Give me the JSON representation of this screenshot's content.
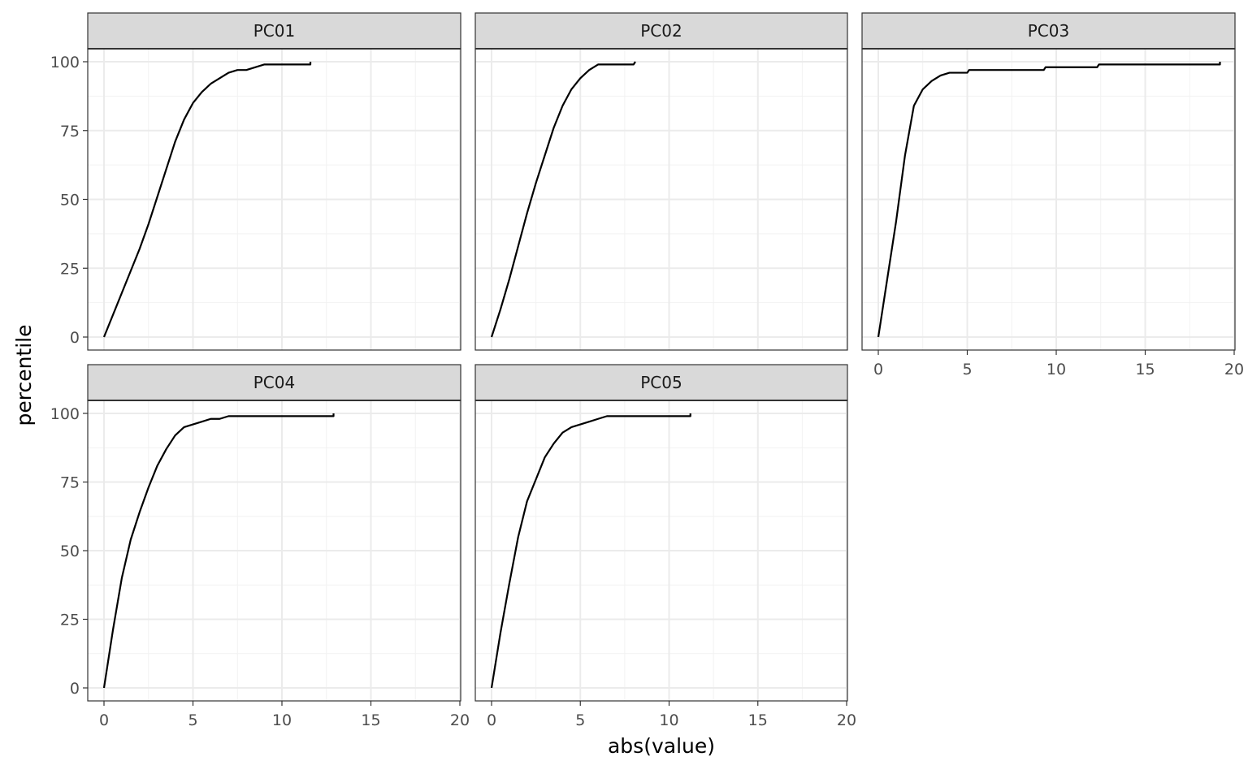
{
  "chart_data": {
    "type": "line",
    "subtype": "empirical-cdf-step",
    "xlabel": "abs(value)",
    "ylabel": "percentile",
    "xlim": [
      0,
      20
    ],
    "ylim": [
      0,
      100
    ],
    "x_ticks": [
      0,
      5,
      10,
      15,
      20
    ],
    "y_ticks": [
      0,
      25,
      50,
      75,
      100
    ],
    "x_tick_labels": [
      "0",
      "5",
      "10",
      "15",
      "20"
    ],
    "y_tick_labels": [
      "0",
      "25",
      "50",
      "75",
      "100"
    ],
    "grid": true,
    "line_color": "#000000",
    "strip_color": "#d9d9d9",
    "facets": [
      {
        "label": "PC01",
        "points": [
          [
            0,
            0
          ],
          [
            0.5,
            8
          ],
          [
            1,
            16
          ],
          [
            1.5,
            24
          ],
          [
            2,
            32
          ],
          [
            2.5,
            41
          ],
          [
            3,
            51
          ],
          [
            3.5,
            61
          ],
          [
            4,
            71
          ],
          [
            4.5,
            79
          ],
          [
            5,
            85
          ],
          [
            5.5,
            89
          ],
          [
            6,
            92
          ],
          [
            6.5,
            94
          ],
          [
            7,
            96
          ],
          [
            7.5,
            97
          ],
          [
            8,
            97
          ],
          [
            8.5,
            98
          ],
          [
            9,
            99
          ],
          [
            10,
            99
          ],
          [
            11,
            99
          ],
          [
            11.6,
            99
          ],
          [
            11.6,
            100
          ]
        ]
      },
      {
        "label": "PC02",
        "points": [
          [
            0,
            0
          ],
          [
            0.5,
            10
          ],
          [
            1,
            21
          ],
          [
            1.5,
            33
          ],
          [
            2,
            45
          ],
          [
            2.5,
            56
          ],
          [
            3,
            66
          ],
          [
            3.5,
            76
          ],
          [
            4,
            84
          ],
          [
            4.5,
            90
          ],
          [
            5,
            94
          ],
          [
            5.5,
            97
          ],
          [
            6,
            99
          ],
          [
            7,
            99
          ],
          [
            8,
            99
          ],
          [
            8.1,
            100
          ]
        ]
      },
      {
        "label": "PC03",
        "points": [
          [
            0,
            0
          ],
          [
            0.5,
            21
          ],
          [
            1,
            42
          ],
          [
            1.5,
            66
          ],
          [
            2,
            84
          ],
          [
            2.5,
            90
          ],
          [
            3,
            93
          ],
          [
            3.5,
            95
          ],
          [
            4,
            96
          ],
          [
            5,
            96
          ],
          [
            5.1,
            97
          ],
          [
            9.3,
            97
          ],
          [
            9.4,
            98
          ],
          [
            12.3,
            98
          ],
          [
            12.4,
            99
          ],
          [
            19.2,
            99
          ],
          [
            19.2,
            100
          ]
        ]
      },
      {
        "label": "PC04",
        "points": [
          [
            0,
            0
          ],
          [
            0.5,
            21
          ],
          [
            1,
            40
          ],
          [
            1.5,
            54
          ],
          [
            2,
            64
          ],
          [
            2.5,
            73
          ],
          [
            3,
            81
          ],
          [
            3.5,
            87
          ],
          [
            4,
            92
          ],
          [
            4.5,
            95
          ],
          [
            5,
            96
          ],
          [
            5.5,
            97
          ],
          [
            6,
            98
          ],
          [
            6.5,
            98
          ],
          [
            7,
            99
          ],
          [
            9,
            99
          ],
          [
            11,
            99
          ],
          [
            12.9,
            99
          ],
          [
            12.9,
            100
          ]
        ]
      },
      {
        "label": "PC05",
        "points": [
          [
            0,
            0
          ],
          [
            0.5,
            20
          ],
          [
            1,
            38
          ],
          [
            1.5,
            55
          ],
          [
            2,
            68
          ],
          [
            2.5,
            76
          ],
          [
            3,
            84
          ],
          [
            3.5,
            89
          ],
          [
            4,
            93
          ],
          [
            4.5,
            95
          ],
          [
            5,
            96
          ],
          [
            5.5,
            97
          ],
          [
            6,
            98
          ],
          [
            6.5,
            99
          ],
          [
            8,
            99
          ],
          [
            10,
            99
          ],
          [
            11.2,
            99
          ],
          [
            11.2,
            100
          ]
        ]
      }
    ]
  }
}
